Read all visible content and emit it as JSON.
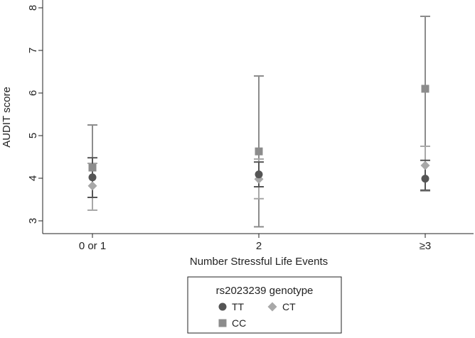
{
  "chart_data": {
    "type": "scatter",
    "xlabel": "Number Stressful Life Events",
    "ylabel": "AUDIT score",
    "categories": [
      "0 or 1",
      "2",
      "≥3"
    ],
    "y_ticks": [
      "3",
      "4",
      "5",
      "6",
      "7",
      "8"
    ],
    "ylim": [
      2.75,
      8.05
    ],
    "grid": false,
    "legend": {
      "title": "rs2023239 genotype",
      "placement": "bottom-center"
    },
    "series": [
      {
        "name": "TT",
        "marker": "circle",
        "color": "#555555",
        "values": [
          4.02,
          4.09,
          3.99
        ],
        "ci_low": [
          3.55,
          3.8,
          3.72
        ],
        "ci_high": [
          4.48,
          4.38,
          4.42
        ]
      },
      {
        "name": "CT",
        "marker": "diamond",
        "color": "#a8a8a8",
        "values": [
          3.82,
          3.98,
          4.3
        ],
        "ci_low": [
          3.25,
          3.52,
          3.7
        ],
        "ci_high": [
          4.35,
          4.45,
          4.75
        ]
      },
      {
        "name": "CC",
        "marker": "square",
        "color": "#8c8c8c",
        "values": [
          4.25,
          4.63,
          6.1
        ],
        "ci_low": [
          3.25,
          2.86,
          3.7
        ],
        "ci_high": [
          5.25,
          6.4,
          7.8
        ]
      }
    ]
  }
}
